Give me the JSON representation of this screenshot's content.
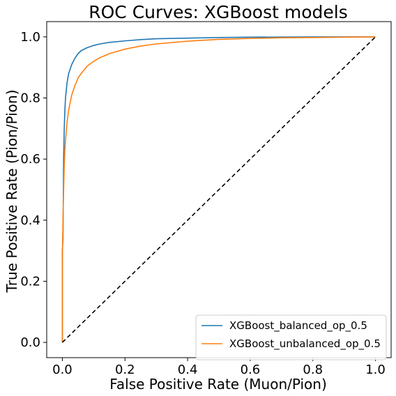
{
  "chart_data": {
    "type": "line",
    "title": "ROC Curves: XGBoost models",
    "xlabel": "False Positive Rate (Muon/Pion)",
    "ylabel": "True Positive Rate (Pion/Pion)",
    "xlim": [
      -0.05,
      1.05
    ],
    "ylim": [
      -0.05,
      1.05
    ],
    "xticks": [
      0.0,
      0.2,
      0.4,
      0.6,
      0.8,
      1.0
    ],
    "yticks": [
      0.0,
      0.2,
      0.4,
      0.6,
      0.8,
      1.0
    ],
    "xtick_labels": [
      "0.0",
      "0.2",
      "0.4",
      "0.6",
      "0.8",
      "1.0"
    ],
    "ytick_labels": [
      "0.0",
      "0.2",
      "0.4",
      "0.6",
      "0.8",
      "1.0"
    ],
    "grid": false,
    "legend_position": "lower-right",
    "series": [
      {
        "name": "XGBoost_balanced_op_0.5",
        "color": "#1f77b4",
        "x": [
          0.0,
          0.0,
          0.002,
          0.004,
          0.006,
          0.008,
          0.01,
          0.015,
          0.02,
          0.03,
          0.04,
          0.05,
          0.06,
          0.08,
          0.1,
          0.12,
          0.15,
          0.2,
          0.25,
          0.3,
          0.4,
          0.5,
          0.6,
          0.7,
          0.8,
          0.9,
          1.0
        ],
        "y": [
          0.0,
          0.3,
          0.34,
          0.6,
          0.7,
          0.76,
          0.8,
          0.85,
          0.88,
          0.91,
          0.93,
          0.945,
          0.955,
          0.965,
          0.972,
          0.977,
          0.982,
          0.987,
          0.991,
          0.994,
          0.996,
          0.998,
          0.999,
          0.9995,
          1.0,
          1.0,
          1.0
        ]
      },
      {
        "name": "XGBoost_unbalanced_op_0.5",
        "color": "#ff7f0e",
        "x": [
          0.0,
          0.0,
          0.002,
          0.004,
          0.006,
          0.008,
          0.01,
          0.015,
          0.02,
          0.03,
          0.04,
          0.05,
          0.06,
          0.08,
          0.1,
          0.12,
          0.15,
          0.2,
          0.25,
          0.3,
          0.4,
          0.5,
          0.6,
          0.7,
          0.8,
          0.9,
          1.0
        ],
        "y": [
          0.0,
          0.27,
          0.4,
          0.5,
          0.58,
          0.63,
          0.66,
          0.72,
          0.76,
          0.81,
          0.84,
          0.865,
          0.88,
          0.905,
          0.92,
          0.932,
          0.945,
          0.96,
          0.97,
          0.977,
          0.986,
          0.992,
          0.995,
          0.997,
          0.998,
          0.999,
          1.0
        ]
      },
      {
        "name": "",
        "color": "#000000",
        "dashed": true,
        "x": [
          0.0,
          1.0
        ],
        "y": [
          0.0,
          1.0
        ]
      }
    ]
  }
}
